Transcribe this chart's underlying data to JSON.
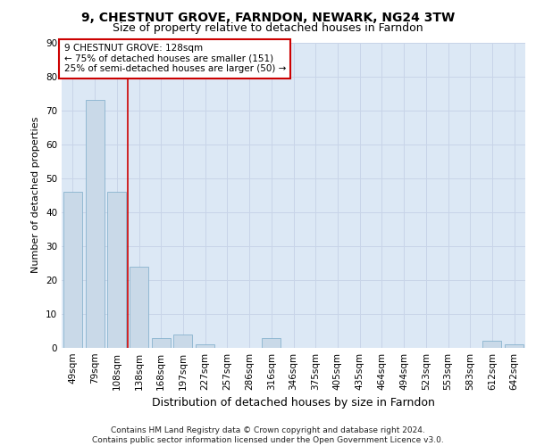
{
  "title1": "9, CHESTNUT GROVE, FARNDON, NEWARK, NG24 3TW",
  "title2": "Size of property relative to detached houses in Farndon",
  "xlabel": "Distribution of detached houses by size in Farndon",
  "ylabel": "Number of detached properties",
  "categories": [
    "49sqm",
    "79sqm",
    "108sqm",
    "138sqm",
    "168sqm",
    "197sqm",
    "227sqm",
    "257sqm",
    "286sqm",
    "316sqm",
    "346sqm",
    "375sqm",
    "405sqm",
    "435sqm",
    "464sqm",
    "494sqm",
    "523sqm",
    "553sqm",
    "583sqm",
    "612sqm",
    "642sqm"
  ],
  "values": [
    46,
    73,
    46,
    24,
    3,
    4,
    1,
    0,
    0,
    3,
    0,
    0,
    0,
    0,
    0,
    0,
    0,
    0,
    0,
    2,
    1
  ],
  "bar_color": "#c9d9e8",
  "bar_edge_color": "#7aaac8",
  "vline_x_index": 2.5,
  "vline_color": "#cc0000",
  "annotation_text": "9 CHESTNUT GROVE: 128sqm\n← 75% of detached houses are smaller (151)\n25% of semi-detached houses are larger (50) →",
  "annotation_box_facecolor": "#ffffff",
  "annotation_box_edgecolor": "#cc0000",
  "footer_text": "Contains HM Land Registry data © Crown copyright and database right 2024.\nContains public sector information licensed under the Open Government Licence v3.0.",
  "ylim": [
    0,
    90
  ],
  "yticks": [
    0,
    10,
    20,
    30,
    40,
    50,
    60,
    70,
    80,
    90
  ],
  "grid_color": "#c8d4e8",
  "bg_color": "#dce8f5",
  "title1_fontsize": 10,
  "title2_fontsize": 9,
  "xlabel_fontsize": 9,
  "ylabel_fontsize": 8,
  "tick_fontsize": 7.5,
  "annotation_fontsize": 7.5,
  "footer_fontsize": 6.5
}
